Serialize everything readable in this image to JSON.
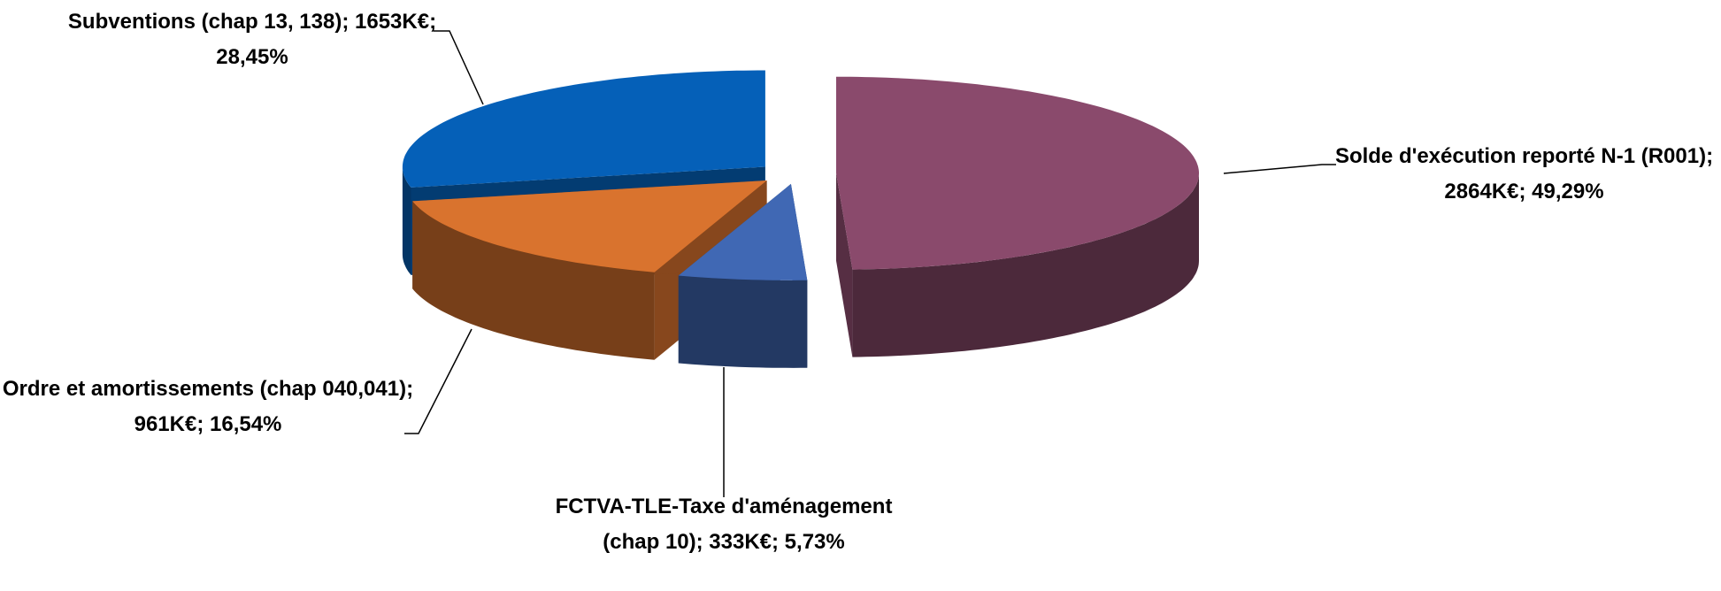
{
  "chart_data": {
    "type": "pie3d",
    "categories": [
      "Solde d'exécution reporté N-1 (R001);",
      "FCTVA-TLE-Taxe d'aménagement (chap 10);",
      "Ordre et amortissements (chap 040,041);",
      "Subventions (chap 13, 138);"
    ],
    "values": [
      2864,
      333,
      961,
      1653
    ],
    "value_labels": [
      "2864K€; 49,29%",
      "333K€; 5,73%",
      "961K€; 16,54%",
      "1653K€; 28,45%"
    ],
    "colors": [
      "#8a4a6c",
      "#4068b4",
      "#d9732e",
      "#0560b8"
    ]
  }
}
